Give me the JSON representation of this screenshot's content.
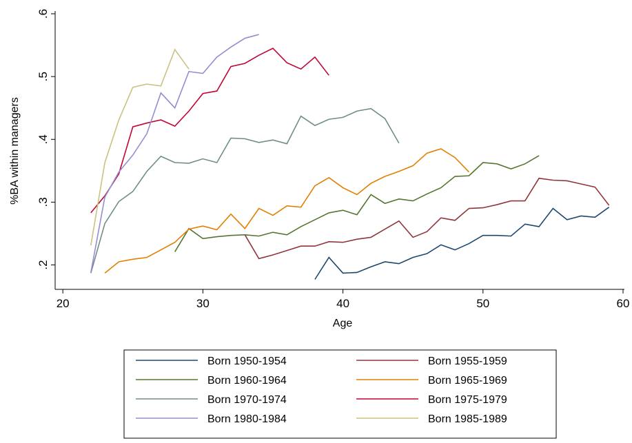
{
  "chart_data": {
    "type": "line",
    "xlabel": "Age",
    "ylabel": "%BA within managers",
    "xlim": [
      19.5,
      60
    ],
    "ylim": [
      0.16,
      0.6
    ],
    "xticks": [
      20,
      30,
      40,
      50,
      60
    ],
    "yticks": [
      {
        "value": 0.2,
        "label": ".2"
      },
      {
        "value": 0.3,
        "label": ".3"
      },
      {
        "value": 0.4,
        "label": ".4"
      },
      {
        "value": 0.5,
        "label": ".5"
      },
      {
        "value": 0.6,
        "label": ".6"
      }
    ],
    "grid": false,
    "legend": "bottom",
    "series": [
      {
        "name": "Born 1950-1954",
        "color": "#1a476f",
        "x": [
          38,
          39,
          40,
          41,
          42,
          43,
          44,
          45,
          46,
          47,
          48,
          49,
          50,
          51,
          52,
          53,
          54,
          55,
          56,
          57,
          58,
          59
        ],
        "values": [
          0.177,
          0.212,
          0.187,
          0.188,
          0.197,
          0.205,
          0.202,
          0.212,
          0.218,
          0.232,
          0.224,
          0.234,
          0.247,
          0.247,
          0.246,
          0.265,
          0.261,
          0.29,
          0.272,
          0.278,
          0.276,
          0.292
        ]
      },
      {
        "name": "Born 1955-1959",
        "color": "#90353b",
        "x": [
          33,
          34,
          35,
          36,
          37,
          38,
          39,
          40,
          41,
          42,
          43,
          44,
          45,
          46,
          47,
          48,
          49,
          50,
          51,
          52,
          53,
          54,
          55,
          56,
          57,
          58,
          59
        ],
        "values": [
          0.248,
          0.21,
          0.216,
          0.223,
          0.23,
          0.23,
          0.237,
          0.236,
          0.241,
          0.244,
          0.257,
          0.27,
          0.244,
          0.253,
          0.275,
          0.271,
          0.29,
          0.291,
          0.296,
          0.302,
          0.302,
          0.338,
          0.335,
          0.334,
          0.329,
          0.324,
          0.295
        ]
      },
      {
        "name": "Born 1960-1964",
        "color": "#55752f",
        "x": [
          28,
          29,
          30,
          31,
          32,
          33,
          34,
          35,
          36,
          37,
          38,
          39,
          40,
          41,
          42,
          43,
          44,
          45,
          46,
          47,
          48,
          49,
          50,
          51,
          52,
          53,
          54
        ],
        "values": [
          0.221,
          0.258,
          0.242,
          0.245,
          0.247,
          0.248,
          0.246,
          0.252,
          0.248,
          0.261,
          0.272,
          0.283,
          0.287,
          0.28,
          0.312,
          0.298,
          0.305,
          0.302,
          0.313,
          0.323,
          0.341,
          0.342,
          0.363,
          0.361,
          0.353,
          0.361,
          0.374
        ]
      },
      {
        "name": "Born 1965-1969",
        "color": "#e37e00",
        "x": [
          23,
          24,
          25,
          26,
          27,
          28,
          29,
          30,
          31,
          32,
          33,
          34,
          35,
          36,
          37,
          38,
          39,
          40,
          41,
          42,
          43,
          44,
          45,
          46,
          47,
          48,
          49
        ],
        "values": [
          0.187,
          0.205,
          0.209,
          0.212,
          0.224,
          0.236,
          0.257,
          0.262,
          0.256,
          0.281,
          0.258,
          0.29,
          0.279,
          0.294,
          0.292,
          0.326,
          0.339,
          0.323,
          0.312,
          0.33,
          0.341,
          0.349,
          0.358,
          0.378,
          0.385,
          0.371,
          0.348
        ]
      },
      {
        "name": "Born 1970-1974",
        "color": "#6e8e84",
        "x": [
          22,
          23,
          24,
          25,
          26,
          27,
          28,
          29,
          30,
          31,
          32,
          33,
          34,
          35,
          36,
          37,
          38,
          39,
          40,
          41,
          42,
          43,
          44
        ],
        "values": [
          0.187,
          0.266,
          0.301,
          0.317,
          0.349,
          0.373,
          0.363,
          0.362,
          0.369,
          0.363,
          0.402,
          0.401,
          0.395,
          0.399,
          0.393,
          0.437,
          0.422,
          0.432,
          0.435,
          0.445,
          0.449,
          0.433,
          0.394
        ]
      },
      {
        "name": "Born 1975-1979",
        "color": "#c10534",
        "x": [
          22,
          23,
          24,
          25,
          26,
          27,
          28,
          29,
          30,
          31,
          32,
          33,
          34,
          35,
          36,
          37,
          38,
          39
        ],
        "values": [
          0.283,
          0.31,
          0.345,
          0.42,
          0.426,
          0.431,
          0.421,
          0.445,
          0.473,
          0.477,
          0.516,
          0.521,
          0.534,
          0.545,
          0.522,
          0.512,
          0.531,
          0.502
        ]
      },
      {
        "name": "Born 1980-1984",
        "color": "#938dd2",
        "x": [
          22,
          23,
          24,
          25,
          26,
          27,
          28,
          29,
          30,
          31,
          32,
          33,
          34
        ],
        "values": [
          0.188,
          0.308,
          0.348,
          0.375,
          0.409,
          0.474,
          0.45,
          0.508,
          0.505,
          0.531,
          0.547,
          0.561,
          0.567
        ]
      },
      {
        "name": "Born 1985-1989",
        "color": "#cac27e",
        "x": [
          22,
          23,
          24,
          25,
          26,
          27,
          28,
          29
        ],
        "values": [
          0.231,
          0.363,
          0.431,
          0.483,
          0.488,
          0.485,
          0.543,
          0.512
        ]
      }
    ]
  }
}
